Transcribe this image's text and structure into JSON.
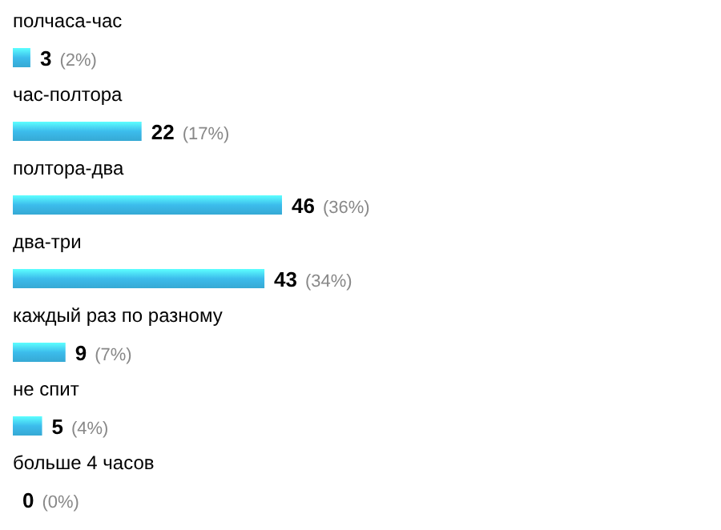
{
  "chart_data": {
    "type": "bar",
    "orientation": "horizontal",
    "categories": [
      "полчаса-час",
      "час-полтора",
      "полтора-два",
      "два-три",
      "каждый раз по разному",
      "не спит",
      "больше 4 часов"
    ],
    "values": [
      3,
      22,
      46,
      43,
      9,
      5,
      0
    ],
    "value_labels": [
      "3 (2%)",
      "22 (17%)",
      "46 (36%)",
      "43 (34%)",
      "9 (7%)",
      "5 (4%)",
      "0 (0%)"
    ],
    "color": "#3cbcec"
  }
}
